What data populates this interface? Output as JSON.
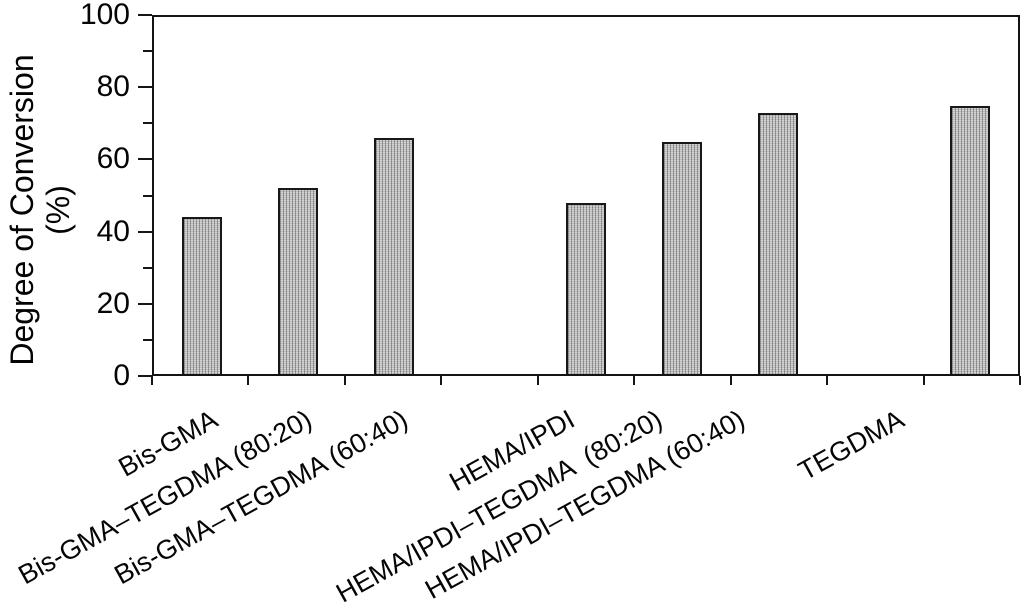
{
  "figure": {
    "background_color": "#ffffff",
    "axis_color": "#141414",
    "text_color": "#050505",
    "bar_fill_color": "#d4d4d4",
    "bar_stripe_color": "#8c8c8c",
    "bar_border_color": "#181818"
  },
  "chart_data": {
    "type": "bar",
    "title": "",
    "xlabel": "",
    "ylabel": "Degree of Conversion (%)",
    "ylabel_line1": "Degree of Conversion",
    "ylabel_line2": "(%)",
    "categories": [
      "Bis-GMA",
      "Bis-GMA–TEGDMA (80:20)",
      "Bis-GMA–TEGDMA (60:40)",
      "HEMA/IPDI",
      "HEMA/IPDI–TEGDMA  (80:20)",
      "HEMA/IPDI–TEGDMA (60:40)",
      "TEGDMA"
    ],
    "values": [
      44,
      52,
      66,
      48,
      65,
      73,
      75
    ],
    "ylim": [
      0,
      100
    ],
    "ytick_labels": [
      "0",
      "20",
      "40",
      "60",
      "80",
      "100"
    ],
    "ytick_major_step": 20,
    "ytick_minor_step": 10,
    "grid": false,
    "legend": false,
    "bar_texture": "fine vertical stripes with dots",
    "category_grouping_note": "empty slot between Bis-GMA group and HEMA/IPDI group, and before TEGDMA"
  }
}
